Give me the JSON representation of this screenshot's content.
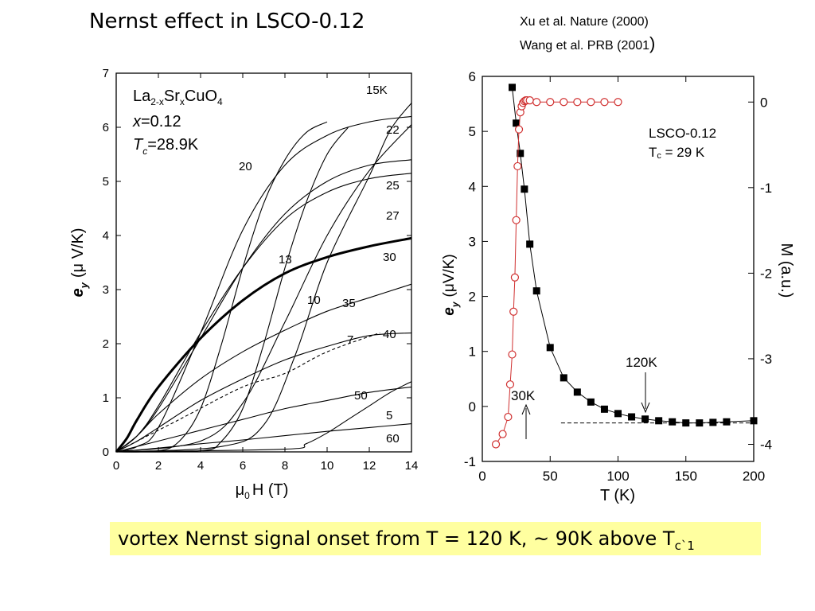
{
  "slide": {
    "title": "Nernst effect in LSCO-0.12",
    "references": [
      "Xu et al. Nature (2000)",
      "Wang et al. PRB (2001",
      ")"
    ],
    "caption_main": "vortex Nernst signal onset from T = 120 K, ~ 90K above T",
    "caption_sub": "c`1"
  },
  "chart_data": [
    {
      "type": "line",
      "xlabel_symbol": "μ",
      "xlabel_sub": "0",
      "xlabel_rest": "H (T)",
      "ylabel_sym": "e",
      "ylabel_sub": "y",
      "ylabel_rest": "(μ V/K)",
      "xlim": [
        0,
        14
      ],
      "ylim": [
        0,
        7
      ],
      "xticks": [
        0,
        2,
        4,
        6,
        8,
        10,
        12,
        14
      ],
      "yticks": [
        0,
        1,
        2,
        3,
        4,
        5,
        6,
        7
      ],
      "annotation": {
        "formula": [
          "La",
          "2-x",
          "Sr",
          "x",
          "CuO",
          "4"
        ],
        "composition": [
          "x",
          "=0.12"
        ],
        "tc": [
          "T",
          "c",
          "=28.9K"
        ]
      },
      "series": [
        {
          "name": "15K",
          "points": [
            [
              0,
              0
            ],
            [
              5,
              0.1
            ],
            [
              7,
              0.5
            ],
            [
              8.5,
              1.8
            ],
            [
              10,
              3.5
            ],
            [
              12,
              5.1
            ],
            [
              13,
              5.95
            ],
            [
              14,
              6.45
            ]
          ]
        },
        {
          "name": "20",
          "points": [
            [
              0,
              0
            ],
            [
              1,
              0.1
            ],
            [
              2,
              0.45
            ],
            [
              4,
              2.2
            ],
            [
              6,
              4.1
            ],
            [
              8,
              5.3
            ],
            [
              10,
              5.85
            ],
            [
              12,
              6.1
            ],
            [
              14,
              6.2
            ]
          ]
        },
        {
          "name": "22",
          "points": [
            [
              0,
              0
            ],
            [
              4,
              0.2
            ],
            [
              6,
              0.9
            ],
            [
              8,
              2.4
            ],
            [
              10,
              4.0
            ],
            [
              12,
              5.2
            ],
            [
              14,
              6.05
            ]
          ]
        },
        {
          "name": "25",
          "points": [
            [
              0,
              0
            ],
            [
              1,
              0.3
            ],
            [
              2,
              0.8
            ],
            [
              4,
              2.1
            ],
            [
              6,
              3.4
            ],
            [
              8,
              4.4
            ],
            [
              10,
              5.0
            ],
            [
              12,
              5.3
            ],
            [
              14,
              5.4
            ]
          ]
        },
        {
          "name": "27",
          "points": [
            [
              0,
              0
            ],
            [
              1,
              0.3
            ],
            [
              2,
              0.85
            ],
            [
              4,
              2.2
            ],
            [
              6,
              3.4
            ],
            [
              8,
              4.3
            ],
            [
              10,
              4.8
            ],
            [
              12,
              5.05
            ],
            [
              14,
              5.15
            ]
          ]
        },
        {
          "name": "13",
          "points": [
            [
              0,
              0
            ],
            [
              2,
              0.02
            ],
            [
              3,
              0.2
            ],
            [
              4,
              0.8
            ],
            [
              5,
              2.0
            ],
            [
              6,
              3.4
            ],
            [
              7,
              4.6
            ],
            [
              8,
              5.4
            ],
            [
              9,
              5.9
            ],
            [
              10,
              6.1
            ]
          ]
        },
        {
          "name": "10",
          "points": [
            [
              0,
              0
            ],
            [
              4,
              0.02
            ],
            [
              5,
              0.2
            ],
            [
              6,
              0.8
            ],
            [
              7,
              2.0
            ],
            [
              8,
              3.4
            ],
            [
              9,
              4.6
            ],
            [
              10,
              5.5
            ],
            [
              11,
              6.0
            ]
          ]
        },
        {
          "name": "30",
          "points": [
            [
              0,
              0
            ],
            [
              0.5,
              0.25
            ],
            [
              1,
              0.6
            ],
            [
              2,
              1.2
            ],
            [
              4,
              2.1
            ],
            [
              6,
              2.8
            ],
            [
              8,
              3.3
            ],
            [
              10,
              3.6
            ],
            [
              12,
              3.8
            ],
            [
              14,
              3.95
            ]
          ]
        },
        {
          "name": "35",
          "points": [
            [
              0,
              0
            ],
            [
              1,
              0.3
            ],
            [
              2,
              0.7
            ],
            [
              4,
              1.35
            ],
            [
              6,
              1.85
            ],
            [
              8,
              2.25
            ],
            [
              10,
              2.6
            ],
            [
              12,
              2.85
            ],
            [
              14,
              3.1
            ]
          ]
        },
        {
          "name": "40",
          "points": [
            [
              0,
              0
            ],
            [
              1,
              0.2
            ],
            [
              2,
              0.45
            ],
            [
              4,
              0.95
            ],
            [
              6,
              1.35
            ],
            [
              8,
              1.7
            ],
            [
              10,
              1.95
            ],
            [
              12,
              2.15
            ],
            [
              14,
              2.2
            ]
          ]
        },
        {
          "name": "50",
          "points": [
            [
              0,
              0
            ],
            [
              2,
              0.2
            ],
            [
              4,
              0.4
            ],
            [
              6,
              0.6
            ],
            [
              8,
              0.8
            ],
            [
              10,
              0.95
            ],
            [
              12,
              1.1
            ],
            [
              14,
              1.2
            ]
          ]
        },
        {
          "name": "5",
          "points": [
            [
              0,
              0
            ],
            [
              8,
              0.05
            ],
            [
              9,
              0.15
            ],
            [
              10,
              0.35
            ],
            [
              11,
              0.6
            ],
            [
              12,
              0.85
            ],
            [
              13,
              1.1
            ],
            [
              14,
              1.3
            ]
          ]
        },
        {
          "name": "60",
          "points": [
            [
              0,
              0
            ],
            [
              2,
              0.07
            ],
            [
              4,
              0.15
            ],
            [
              6,
              0.22
            ],
            [
              8,
              0.3
            ],
            [
              10,
              0.38
            ],
            [
              12,
              0.45
            ],
            [
              14,
              0.52
            ]
          ]
        },
        {
          "name": "7",
          "dashed": true,
          "points": [
            [
              0,
              0
            ],
            [
              3,
              0.6
            ],
            [
              6,
              1.2
            ],
            [
              8,
              1.45
            ],
            [
              10,
              1.85
            ],
            [
              12.5,
              2.2
            ]
          ]
        }
      ],
      "bold_series": "30"
    },
    {
      "type": "scatter",
      "xlabel": "T (K)",
      "ylabel_sym": "e",
      "ylabel_sub": "y",
      "ylabel_rest": "(μV/K)",
      "y2label": "M (a.u.)",
      "xlim": [
        0,
        200
      ],
      "ylim": [
        -1,
        6
      ],
      "y2lim": [
        -4.2,
        0.3
      ],
      "xticks": [
        0,
        50,
        100,
        150,
        200
      ],
      "yticks": [
        -1,
        0,
        1,
        2,
        3,
        4,
        5,
        6
      ],
      "y2ticks": [
        0,
        -1,
        -2,
        -3,
        -4
      ],
      "legend_text": [
        "LSCO-0.12",
        "T",
        "c",
        " = 29 K"
      ],
      "annotations": [
        "120K",
        "30K"
      ],
      "series": [
        {
          "marker": "filled-square",
          "color": "#000000",
          "axis": "left",
          "points": [
            [
              22,
              5.8
            ],
            [
              25,
              5.15
            ],
            [
              28,
              4.6
            ],
            [
              31,
              3.95
            ],
            [
              35,
              2.95
            ],
            [
              40,
              2.1
            ],
            [
              50,
              1.07
            ],
            [
              60,
              0.52
            ],
            [
              70,
              0.26
            ],
            [
              80,
              0.08
            ],
            [
              90,
              -0.05
            ],
            [
              100,
              -0.13
            ],
            [
              110,
              -0.19
            ],
            [
              120,
              -0.23
            ],
            [
              130,
              -0.26
            ],
            [
              140,
              -0.28
            ],
            [
              150,
              -0.3
            ],
            [
              160,
              -0.3
            ],
            [
              170,
              -0.29
            ],
            [
              180,
              -0.28
            ],
            [
              200,
              -0.26
            ]
          ]
        },
        {
          "marker": "open-circle",
          "color": "#d03030",
          "axis": "right",
          "points": [
            [
              10,
              -4.0
            ],
            [
              15,
              -3.88
            ],
            [
              19,
              -3.68
            ],
            [
              20.5,
              -3.3
            ],
            [
              22,
              -2.95
            ],
            [
              23,
              -2.45
            ],
            [
              24,
              -2.05
            ],
            [
              25,
              -1.38
            ],
            [
              26,
              -0.75
            ],
            [
              27,
              -0.32
            ],
            [
              28,
              -0.12
            ],
            [
              29,
              -0.05
            ],
            [
              30,
              -0.01
            ],
            [
              31,
              0.01
            ],
            [
              32,
              0.02
            ],
            [
              33,
              0.02
            ],
            [
              35,
              0.02
            ],
            [
              40,
              0.0
            ],
            [
              50,
              0.0
            ],
            [
              60,
              0.0
            ],
            [
              70,
              0.0
            ],
            [
              80,
              0.0
            ],
            [
              90,
              0.0
            ],
            [
              100,
              0.0
            ]
          ]
        }
      ],
      "baseline": {
        "x": [
          58,
          200
        ],
        "y": -0.3
      }
    }
  ]
}
